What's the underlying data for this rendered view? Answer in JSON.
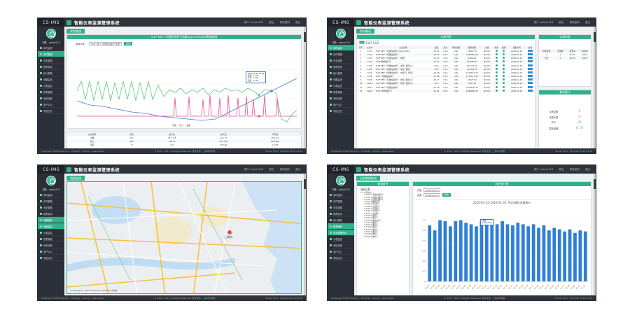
{
  "logo": "CS-IMS",
  "app_title": "智能仪表监测管理系统",
  "user_name": "刘鹏 - admin123",
  "top_links": [
    "用户: admin123",
    "退出",
    "帮助",
    "修改密码",
    "退出"
  ],
  "footer_left": "Yorkpress CS-IMS Intercity -- Property -- Group -- Association",
  "footer_mid": "© 2015 - 2017 All Rights Reserved. 技术支持：上海中宇智能",
  "footer_right": "Server Time：2016-01-25 14:21:00",
  "menu": [
    "实时监测",
    "实时数据",
    "历史数据",
    "报警查询",
    "统计报表",
    "地图监测",
    "仪表监控",
    "报表管理",
    "系统设置",
    "用户中心",
    "系统日志"
  ],
  "p1": {
    "tab": "实时曲线",
    "chart_title": "TLVF MEY 1号酸性进料气流量(Kgcm3/h)实时数据曲线",
    "label_select": "选择仪表：",
    "select_value": "TLVF MEY 1号酸性进料气流量",
    "btn": "查询",
    "legend": [
      "流量",
      "压力",
      "温度"
    ],
    "tooltip": [
      "2016-01-25 13:05",
      "流量：13.00",
      "压力：71.24",
      "温度：13.20"
    ],
    "table_head": [
      "仪表名称",
      "单位",
      "最小值",
      "最大值",
      "平均值"
    ],
    "table_rows": [
      [
        "流量",
        "t/h",
        "77.7 m3",
        "211.77",
        "75.6 m3"
      ],
      [
        "压力",
        "kPa",
        "766.72",
        "874.705",
        "868.289"
      ],
      [
        "温度",
        "℃",
        "4.9",
        "327.60",
        "12.38"
      ]
    ]
  },
  "p2": {
    "tab": "实时概况",
    "left_header": "仪表列表",
    "right_top_header": "仪表状态",
    "right_bottom_header": "基本统计",
    "chips": [
      "1",
      "2",
      "3"
    ],
    "table_head": [
      "序号",
      "仪表ID",
      "仪表名称",
      "温度",
      "压力",
      "瞬时流量",
      "累积流量",
      "流速",
      "状态",
      "报警",
      "采集时间",
      "操作"
    ],
    "rows": [
      [
        "1",
        "TLV1",
        "TLVF MEY 1号酸性进料气(Kg/cm3/h)",
        "23.47",
        "℃",
        "0.16",
        "kPa",
        "Nm3/h",
        "19187.70",
        "Nm3/h",
        "2016-01-25"
      ],
      [
        "2",
        "TLV2",
        "TLVF MEY 2号酸性进料气",
        "22.79",
        "℃",
        "0.12",
        "kPa",
        "178.21",
        "1036981.46",
        "Nm3/h",
        "2016-01-25"
      ],
      [
        "3",
        "TLV3",
        "TLVF MEY 1号酸性进料气（燃烧）",
        "22.71",
        "℃",
        "0.13",
        "kPa",
        "Nm3/h",
        "1290.26",
        "Nm3/h",
        "2016-01-25"
      ],
      [
        "4",
        "TLV4",
        "TLV4 燃烧用空气",
        "21.91",
        "℃",
        "0.13",
        "kPa",
        "Nm3/h",
        "123587.93",
        "Nm3/h",
        "2016-01-25"
      ],
      [
        "5",
        "TLV5",
        "TLVF MEY 1号酸性进料气（中压, 低压Vn）",
        "22.6",
        "℃",
        "0.13",
        "kPa",
        "Nm3/h",
        "731117.00",
        "Nm3/h",
        "2016-01-25"
      ],
      [
        "6",
        "TLV6",
        "TLVF MEY 1号酸性进料气（中压, 低压）",
        "22.3",
        "℃",
        "0.14",
        "kPa",
        "Nm3/h",
        "312014.76",
        "Nm3/h",
        "2016-01-25"
      ],
      [
        "7",
        "TLV7",
        "TLVF MEY 2号酸性进料气（中压Vn, 低压）",
        "23.18",
        "℃",
        "0.14",
        "kPa",
        "1318.31",
        "1316577.23",
        "Nm3/h",
        "2016-01-25"
      ],
      [
        "8",
        "TLV8",
        "TLVF 1号酸性进料气",
        "22.98",
        "℃",
        "0.13",
        "kPa",
        "Nm3/h",
        "1736117.00",
        "Nm3/h",
        "2016-01-25"
      ],
      [
        "9",
        "TLV9",
        "TLVF MEY 1号酸性进料气（中压, 低压Vn）",
        "22.77",
        "℃",
        "0.15",
        "kPa",
        "Nm3/h",
        "13477.90",
        "Nm3/h",
        "2016-01-25"
      ],
      [
        "10",
        "TLV10",
        "TLVF MEY 1号酸性进料气（中压, 低压Vn）",
        "22.5",
        "℃",
        "0.14",
        "kPa",
        "Nm3/h",
        "7467.15",
        "Nm3/h",
        "2016-01-25"
      ],
      [
        "11",
        "TLV11",
        "TLVF MEY 1号酸性进料气",
        "22.18",
        "℃",
        "0.13",
        "kPa",
        "Nm3/h",
        "2310651.10",
        "Nm3/h",
        "2016-01-25"
      ],
      [
        "12",
        "TLV12",
        "TLV12 燃烧用空气",
        "23.21",
        "℃",
        "0.13",
        "kPa",
        "Nm3/h",
        "1646800.25",
        "Nm3/h",
        "2016-01-25"
      ]
    ],
    "status_head": [
      "报警总数",
      "正常数",
      "报警率",
      "在线率"
    ],
    "status_rows": [
      [
        "5",
        "4",
        "20.0%",
        "100%"
      ],
      [
        "合计",
        "4",
        "20.0%",
        "100%"
      ]
    ],
    "stats": [
      [
        "仪表总数",
        "2"
      ],
      [
        "正常仪表",
        "22"
      ],
      [
        "DTU",
        "25"
      ],
      [
        "异常/离线",
        "0 / 0"
      ]
    ]
  },
  "p3": {
    "tab": "地图监测",
    "city": "上海市",
    "map_footer": "© 2016 Baidu - Data © NavInfo & CenNavi & 道道通"
  },
  "p4": {
    "tab": "历史数据查询",
    "left_header": "查询条件",
    "right_header": "历史统计图",
    "tree_title": "选择仪表",
    "tree_root": "全部仪表",
    "tree_items": [
      "TLV1 1号酸性进料气",
      "TLV2 2号酸性进料气",
      "TLV3 1号酸性进料气",
      "TLV4 燃烧用空气",
      "TLV5 1号进料气",
      "TLV6 1号进料气",
      "TLV7 2号进料气",
      "TLV8 1号进料气",
      "TLV9 1号进料气",
      "TLV10 进料气",
      "TLV11 进料气",
      "TLV12 燃烧用空气",
      "TLV13 进料气",
      "TLV14 进料气",
      "TLV15 进料气",
      "TLV16 进料气",
      "TLV17 进料气",
      "TLV18 进料气",
      "TLV19 进料气"
    ],
    "start_label": "开始",
    "start_value": "2016-01-01",
    "end_label": "结束",
    "end_value": "2016-01-24",
    "btn": "查询",
    "tooltip": [
      "流量",
      "1,035,231"
    ]
  },
  "chart_data": {
    "type": "bar",
    "title": "2016-01-25-2016-01-25 TLV1燃料流量统计",
    "categories": [
      "01-01",
      "01-02",
      "01-03",
      "01-04",
      "01-05",
      "01-06",
      "01-07",
      "01-08",
      "01-09",
      "01-10",
      "01-11",
      "01-12",
      "01-13",
      "01-14",
      "01-15",
      "01-16",
      "01-17",
      "01-18",
      "01-19",
      "01-20",
      "01-21",
      "01-22",
      "01-23",
      "01-24",
      "01-25",
      "01-26",
      "01-27",
      "01-28",
      "01-29",
      "01-30",
      "01-31"
    ],
    "values": [
      1.1,
      1.0,
      1.2,
      1.18,
      1.08,
      1.18,
      1.2,
      1.15,
      1.12,
      1.08,
      1.18,
      1.2,
      1.15,
      1.12,
      1.18,
      1.12,
      1.1,
      1.15,
      1.12,
      1.08,
      1.12,
      1.05,
      1.1,
      1.0,
      1.05,
      1.02,
      0.98,
      1.02,
      0.95,
      1.0,
      0.98
    ],
    "ylim": [
      0,
      1.4
    ],
    "yticks": [
      "0",
      "0.2",
      "0.4",
      "0.6",
      "0.8",
      "1.0",
      "1.2"
    ],
    "color": "#2f7fd4"
  }
}
